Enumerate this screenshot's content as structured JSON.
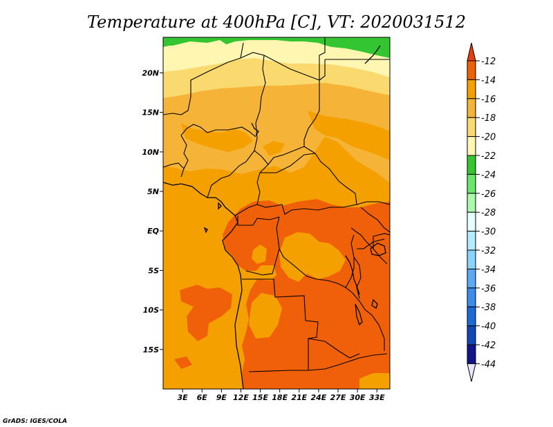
{
  "chart_data": {
    "type": "heatmap",
    "title": "Temperature at 400hPa [C], VT: 2020031512",
    "x_ticks": [
      "3E",
      "6E",
      "9E",
      "12E",
      "15E",
      "18E",
      "21E",
      "24E",
      "27E",
      "30E",
      "33E"
    ],
    "x_tick_values": [
      3,
      6,
      9,
      12,
      15,
      18,
      21,
      24,
      27,
      30,
      33
    ],
    "y_ticks": [
      "20N",
      "15N",
      "10N",
      "5N",
      "EQ",
      "5S",
      "10S",
      "15S"
    ],
    "y_tick_values": [
      20,
      15,
      10,
      5,
      0,
      -5,
      -10,
      -15
    ],
    "xlim": [
      0,
      35
    ],
    "ylim": [
      -20,
      24.5
    ],
    "colorbar": {
      "labels": [
        "-12",
        "-14",
        "-16",
        "-18",
        "-20",
        "-22",
        "-24",
        "-26",
        "-28",
        "-30",
        "-32",
        "-34",
        "-36",
        "-38",
        "-40",
        "-42",
        "-44"
      ],
      "colors": [
        "#e8400d",
        "#f06008",
        "#f3a000",
        "#f5b437",
        "#fada6e",
        "#fff6b2",
        "#34c631",
        "#6ae66a",
        "#aafaaa",
        "#e6ffff",
        "#b2ecfe",
        "#8ad4fc",
        "#5aaaf4",
        "#3a8ced",
        "#1b6ad6",
        "#1048b8",
        "#14148a",
        "#e6e8ff"
      ]
    },
    "regions": [
      {
        "level": "-22",
        "color": "#34c631",
        "area": "northern edge near 23-24N"
      },
      {
        "level": "-20",
        "color": "#fff6b2",
        "area": "north, 21-23N"
      },
      {
        "level": "-18",
        "color": "#fada6e",
        "area": "north, 17-21N"
      },
      {
        "level": "-16",
        "color": "#f5b437",
        "area": "Sahel, 8-17N"
      },
      {
        "level": "-14",
        "color": "#f3a000",
        "area": "Gulf of Guinea, Atlantic, east Africa"
      },
      {
        "level": "-12",
        "color": "#f06008",
        "area": "central Africa, Congo basin to Angola"
      }
    ]
  },
  "footer": {
    "credit": "GrADS: IGES/COLA"
  }
}
